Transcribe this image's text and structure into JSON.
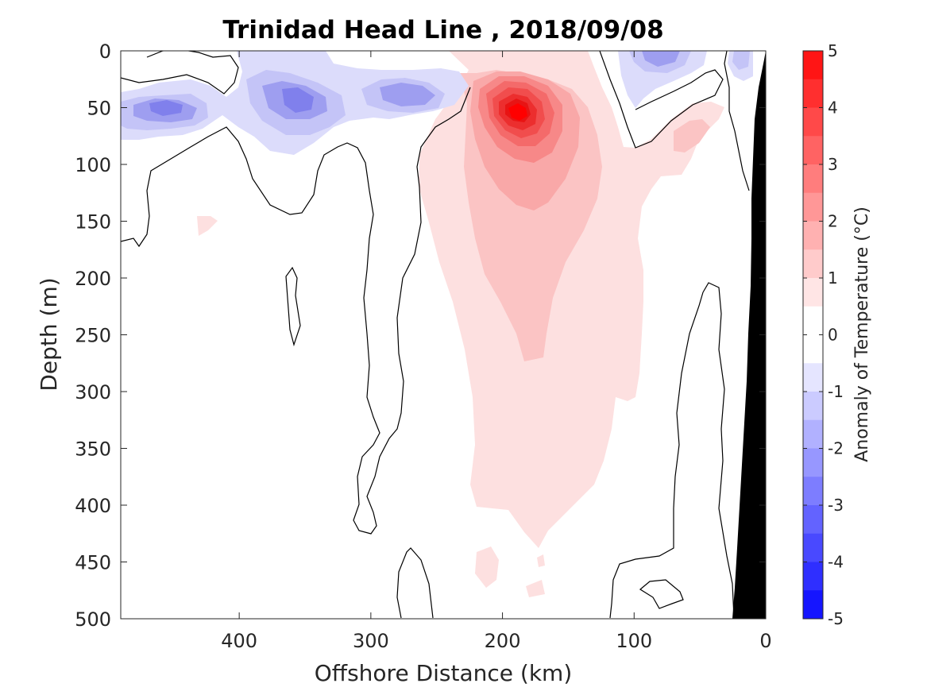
{
  "chart_data": {
    "type": "contour",
    "title": "Trinidad Head Line , 2018/09/08",
    "xlabel": "Offshore Distance (km)",
    "ylabel": "Depth (m)",
    "xlim": [
      490,
      0
    ],
    "ylim": [
      500,
      0
    ],
    "x_reversed": true,
    "y_reversed": true,
    "x_ticks": [
      "400",
      "300",
      "200",
      "100",
      "0"
    ],
    "x_tick_values": [
      400,
      300,
      200,
      100,
      0
    ],
    "y_ticks": [
      "0",
      "50",
      "100",
      "150",
      "200",
      "250",
      "300",
      "350",
      "400",
      "450",
      "500"
    ],
    "y_tick_values": [
      0,
      50,
      100,
      150,
      200,
      250,
      300,
      350,
      400,
      450,
      500
    ],
    "colorbar": {
      "label": "Anomaly of Temperature (°C)",
      "ticks": [
        "5",
        "4",
        "3",
        "2",
        "1",
        "0",
        "-1",
        "-2",
        "-3",
        "-4",
        "-5"
      ],
      "tick_values": [
        5,
        4,
        3,
        2,
        1,
        0,
        -1,
        -2,
        -3,
        -4,
        -5
      ],
      "range": [
        -5,
        5
      ],
      "level_step": 0.5,
      "colormap": "blue-white-red"
    },
    "features": [
      {
        "kind": "warm_anomaly",
        "center_km": 190,
        "center_depth_m": 55,
        "peak_c": 4.5
      },
      {
        "kind": "cold_anomaly",
        "center_km": 460,
        "center_depth_m": 50,
        "min_c": -2
      },
      {
        "kind": "cold_anomaly",
        "center_km": 355,
        "center_depth_m": 45,
        "min_c": -2
      },
      {
        "kind": "cold_anomaly",
        "center_km": 275,
        "center_depth_m": 40,
        "min_c": -1.5
      },
      {
        "kind": "cold_anomaly",
        "center_km": 85,
        "center_depth_m": 5,
        "min_c": -1.5
      },
      {
        "kind": "cold_anomaly",
        "center_km": 18,
        "center_depth_m": 10,
        "min_c": -1
      }
    ],
    "colors": {
      "land_mask": "#000000",
      "contour_zero": "#000000",
      "warm_peak": "#ff0000",
      "cold_peak": "#0000ff"
    }
  }
}
